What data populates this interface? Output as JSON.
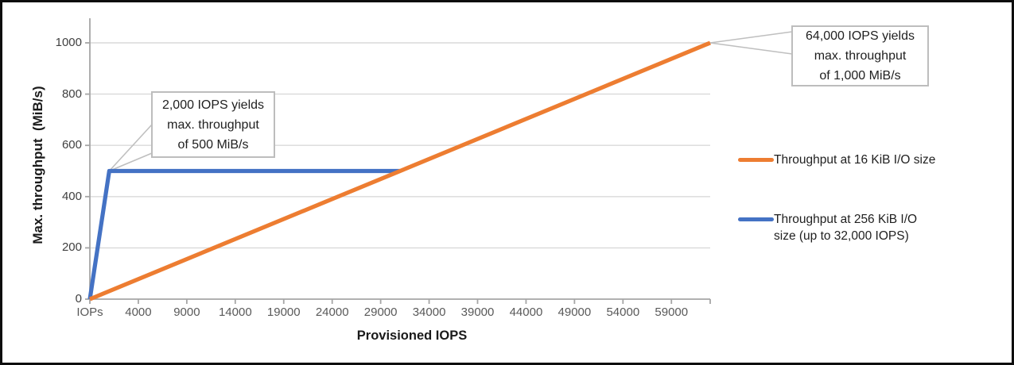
{
  "chart_data": {
    "type": "line",
    "title": "",
    "xlabel": "Provisioned IOPS",
    "ylabel": "Max. throughput  (MiB/s)",
    "xlim": [
      0,
      64000
    ],
    "ylim": [
      0,
      1100
    ],
    "x_tick_step": 5000,
    "x_tick_labels": [
      "IOPs",
      "4000",
      "9000",
      "14000",
      "19000",
      "24000",
      "29000",
      "34000",
      "39000",
      "44000",
      "49000",
      "54000",
      "59000"
    ],
    "y_ticks": [
      0,
      200,
      400,
      600,
      800,
      1000
    ],
    "grid": "horizontal",
    "legend_position": "right",
    "colors": {
      "grid": "#d9d9d9",
      "axis": "#a6a6a6",
      "x_tick_label": "#595959",
      "y_tick_label": "#404040",
      "leader": "#bfbfbf",
      "callout_border": "#bdbdbd"
    },
    "series": [
      {
        "name": "Throughput at 16 KiB I/O size",
        "color": "#ed7d31",
        "points": [
          [
            0,
            0
          ],
          [
            64000,
            1000
          ]
        ]
      },
      {
        "name": "Throughput at 256 KiB I/O size (up to 32,000 IOPS)",
        "color": "#4472c4",
        "points": [
          [
            0,
            0
          ],
          [
            2000,
            500
          ],
          [
            32000,
            500
          ]
        ]
      }
    ],
    "annotations": [
      {
        "text": "2,000 IOPS yields\nmax. throughput\nof 500 MiB/s",
        "target": [
          2000,
          500
        ]
      },
      {
        "text": "64,000 IOPS yields\nmax. throughput\nof 1,000 MiB/s",
        "target": [
          64000,
          1000
        ]
      }
    ]
  }
}
